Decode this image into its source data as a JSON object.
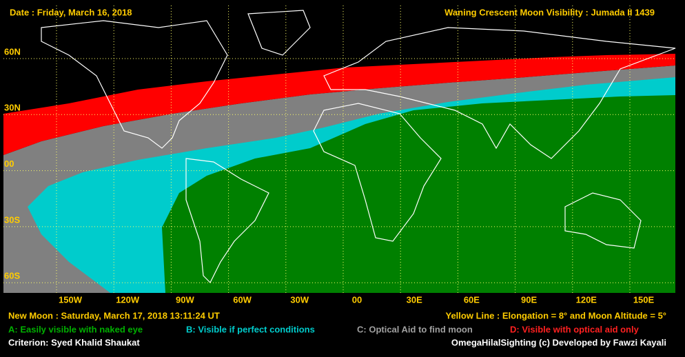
{
  "header": {
    "date": "Date : Friday, March 16, 2018",
    "title": "Waning Crescent Moon Visibility : Jumada II 1439"
  },
  "map": {
    "latitudes": [
      "60N",
      "30N",
      "00",
      "30S",
      "60S"
    ],
    "longitudes": [
      "150W",
      "120W",
      "90W",
      "60W",
      "30W",
      "00",
      "30E",
      "60E",
      "90E",
      "120E",
      "150E"
    ]
  },
  "footer": {
    "new_moon": "New Moon : Saturday, March 17, 2018  13:11:24  UT",
    "yellow_line": "Yellow Line : Elongation = 8° and Moon Altitude = 5°",
    "legend": [
      "A: Easily visible with naked eye",
      "B: Visible if perfect conditions",
      "C: Optical Aid to find moon",
      "D: Visible with optical aid only"
    ],
    "criterion": "Criterion: Syed Khalid Shaukat",
    "credit": "OmegaHilalSighting  (c)  Developed by Fawzi Kayali"
  }
}
